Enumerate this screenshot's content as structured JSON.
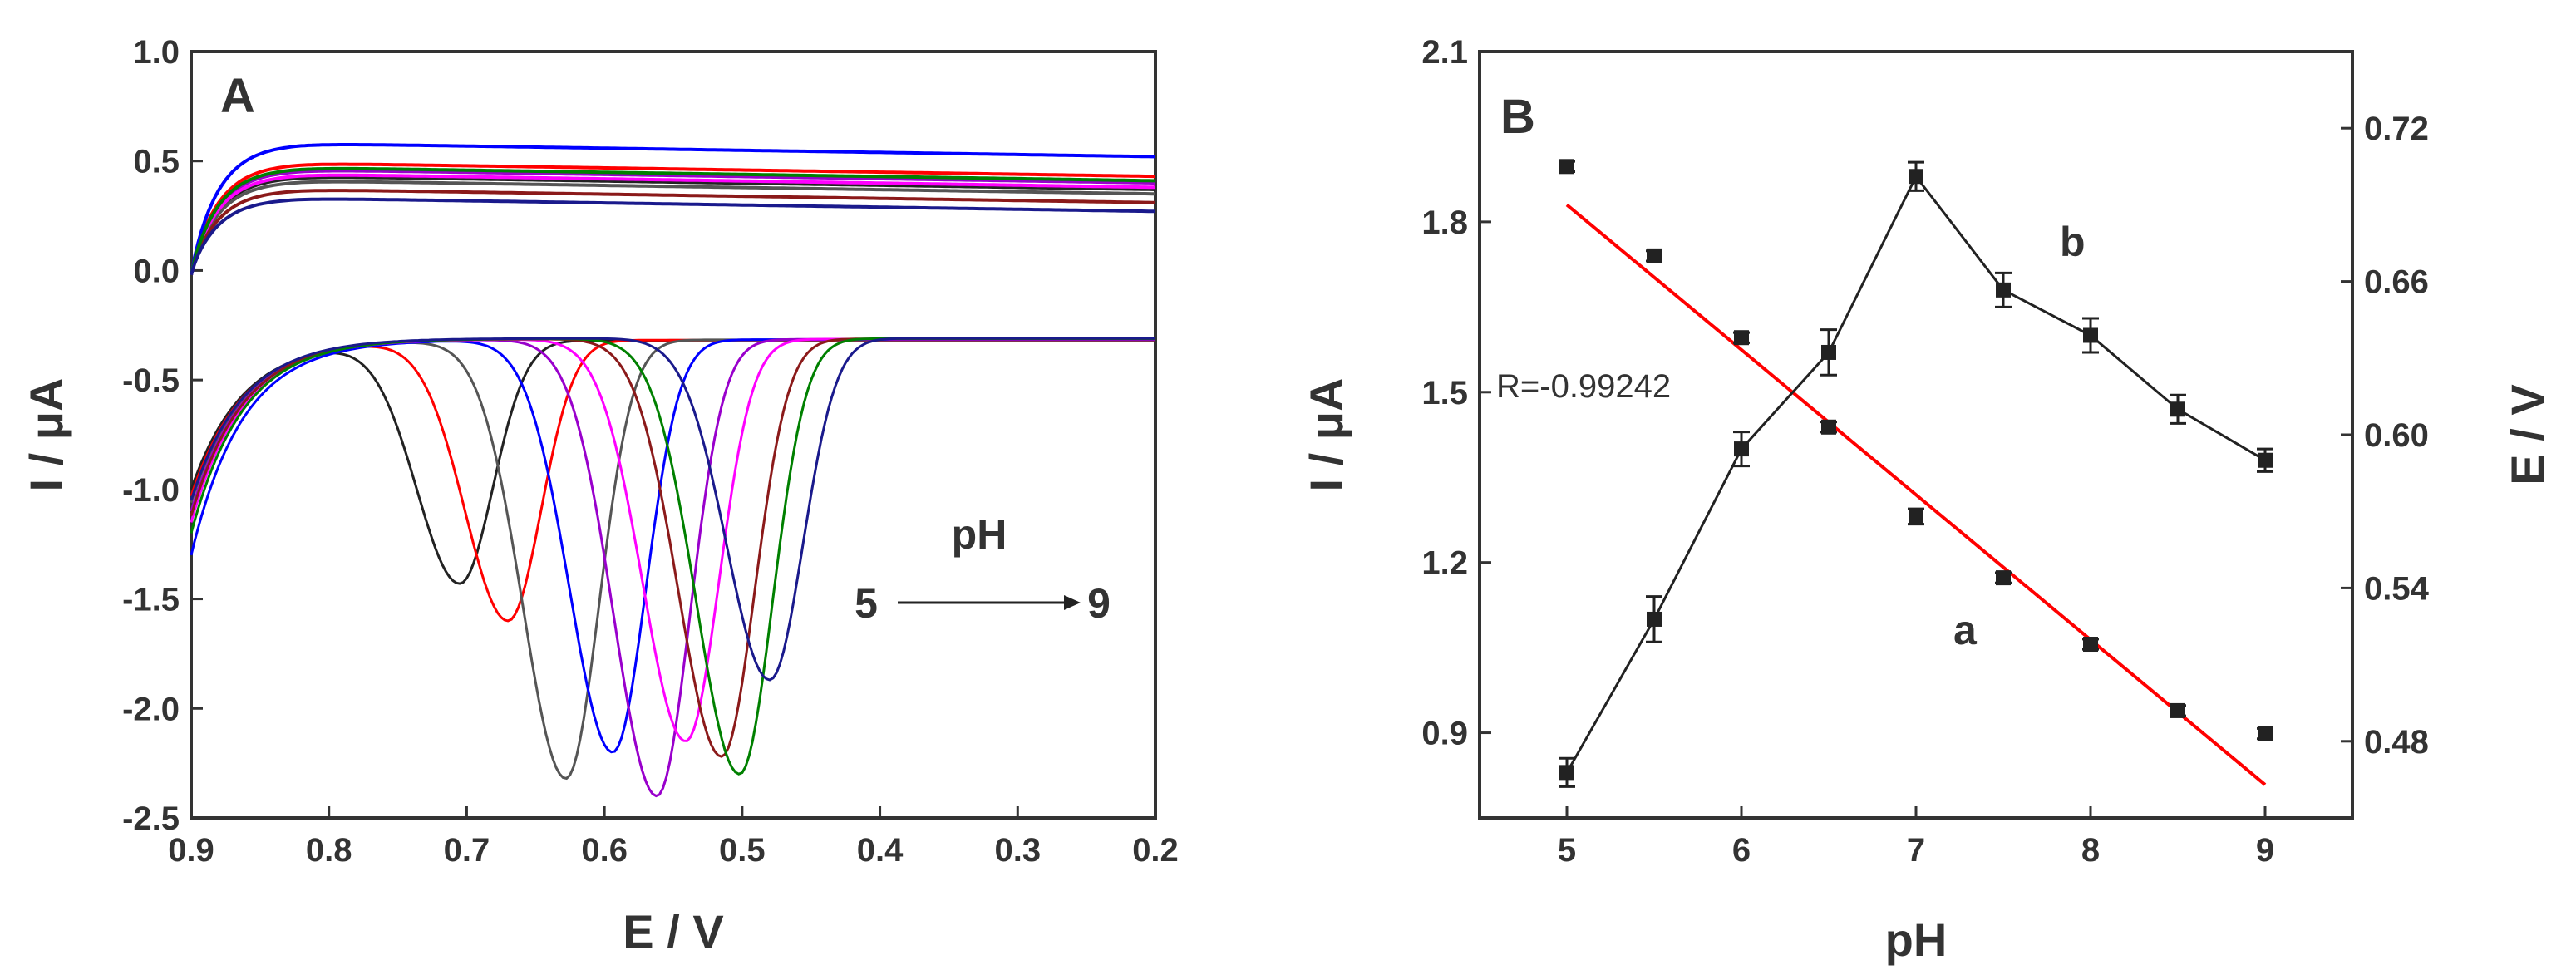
{
  "colors": {
    "black": "#222222",
    "red": "#ff0000",
    "gray": "#555555",
    "blue": "#0000ff",
    "magenta": "#ff00ff",
    "purple": "#9900cc",
    "brown": "#8b1a1a",
    "green": "#008000",
    "navy": "#1a1a8c",
    "axis": "#333333"
  },
  "chart_data": [
    {
      "type": "line",
      "panel_label": "A",
      "xlabel": "E / V",
      "ylabel": "I / μA",
      "xlim": [
        0.9,
        0.2
      ],
      "ylim": [
        -2.5,
        1.0
      ],
      "x_ticks": [
        "0.9",
        "0.8",
        "0.7",
        "0.6",
        "0.5",
        "0.4",
        "0.3",
        "0.2"
      ],
      "y_ticks": [
        "1.0",
        "0.5",
        "0.0",
        "-0.5",
        "-1.0",
        "-1.5",
        "-2.0",
        "-2.5"
      ],
      "annotation": {
        "title": "pH",
        "from": "5",
        "to": "9"
      },
      "series": [
        {
          "pH": 5.0,
          "color": "black",
          "peak_E": 0.705,
          "peak_I": -1.43,
          "cap_top": 0.43,
          "start_I": -1.0
        },
        {
          "pH": 5.5,
          "color": "red",
          "peak_E": 0.67,
          "peak_I": -1.6,
          "cap_top": 0.49,
          "start_I": -1.03
        },
        {
          "pH": 6.0,
          "color": "gray",
          "peak_E": 0.628,
          "peak_I": -2.32,
          "cap_top": 0.41,
          "start_I": -1.06
        },
        {
          "pH": 6.5,
          "color": "blue",
          "peak_E": 0.594,
          "peak_I": -2.2,
          "cap_top": 0.58,
          "start_I": -1.3
        },
        {
          "pH": 7.0,
          "color": "purple",
          "peak_E": 0.562,
          "peak_I": -2.4,
          "cap_top": 0.46,
          "start_I": -1.1
        },
        {
          "pH": 7.5,
          "color": "magenta",
          "peak_E": 0.541,
          "peak_I": -2.15,
          "cap_top": 0.44,
          "start_I": -1.15
        },
        {
          "pH": 8.0,
          "color": "brown",
          "peak_E": 0.515,
          "peak_I": -2.22,
          "cap_top": 0.37,
          "start_I": -1.12
        },
        {
          "pH": 8.5,
          "color": "green",
          "peak_E": 0.502,
          "peak_I": -2.3,
          "cap_top": 0.47,
          "start_I": -1.2
        },
        {
          "pH": 9.0,
          "color": "navy",
          "peak_E": 0.48,
          "peak_I": -1.87,
          "cap_top": 0.33,
          "start_I": -1.05
        }
      ]
    },
    {
      "type": "scatter",
      "panel_label": "B",
      "xlabel": "pH",
      "ylabel_left": "I / μA",
      "ylabel_right": "E / V",
      "xlim": [
        4.5,
        9.5
      ],
      "ylim_left": [
        0.75,
        2.1
      ],
      "ylim_right": [
        0.45,
        0.75
      ],
      "x_ticks": [
        "5",
        "6",
        "7",
        "8",
        "9"
      ],
      "y_ticks_left": [
        "0.9",
        "1.2",
        "1.5",
        "1.8",
        "2.1"
      ],
      "y_ticks_right": [
        "0.48",
        "0.54",
        "0.60",
        "0.66",
        "0.72"
      ],
      "correlation": "R=-0.99242",
      "series": [
        {
          "name": "a",
          "axis": "right",
          "label": "a",
          "x": [
            5,
            5.5,
            6,
            6.5,
            7,
            7.5,
            8,
            8.5,
            9
          ],
          "y": [
            0.705,
            0.67,
            0.638,
            0.603,
            0.568,
            0.544,
            0.518,
            0.492,
            0.483
          ],
          "err": [
            0.002,
            0.002,
            0.002,
            0.002,
            0.003,
            0.002,
            0.002,
            0.002,
            0.002
          ],
          "fit": {
            "x": [
              5,
              9
            ],
            "y": [
              0.69,
              0.463
            ]
          }
        },
        {
          "name": "b",
          "axis": "left",
          "label": "b",
          "x": [
            5,
            5.5,
            6,
            6.5,
            7,
            7.5,
            8,
            8.5,
            9
          ],
          "y": [
            0.83,
            1.1,
            1.4,
            1.57,
            1.88,
            1.68,
            1.6,
            1.47,
            1.38
          ],
          "err": [
            0.025,
            0.04,
            0.03,
            0.04,
            0.025,
            0.03,
            0.03,
            0.025,
            0.02
          ]
        }
      ]
    }
  ]
}
